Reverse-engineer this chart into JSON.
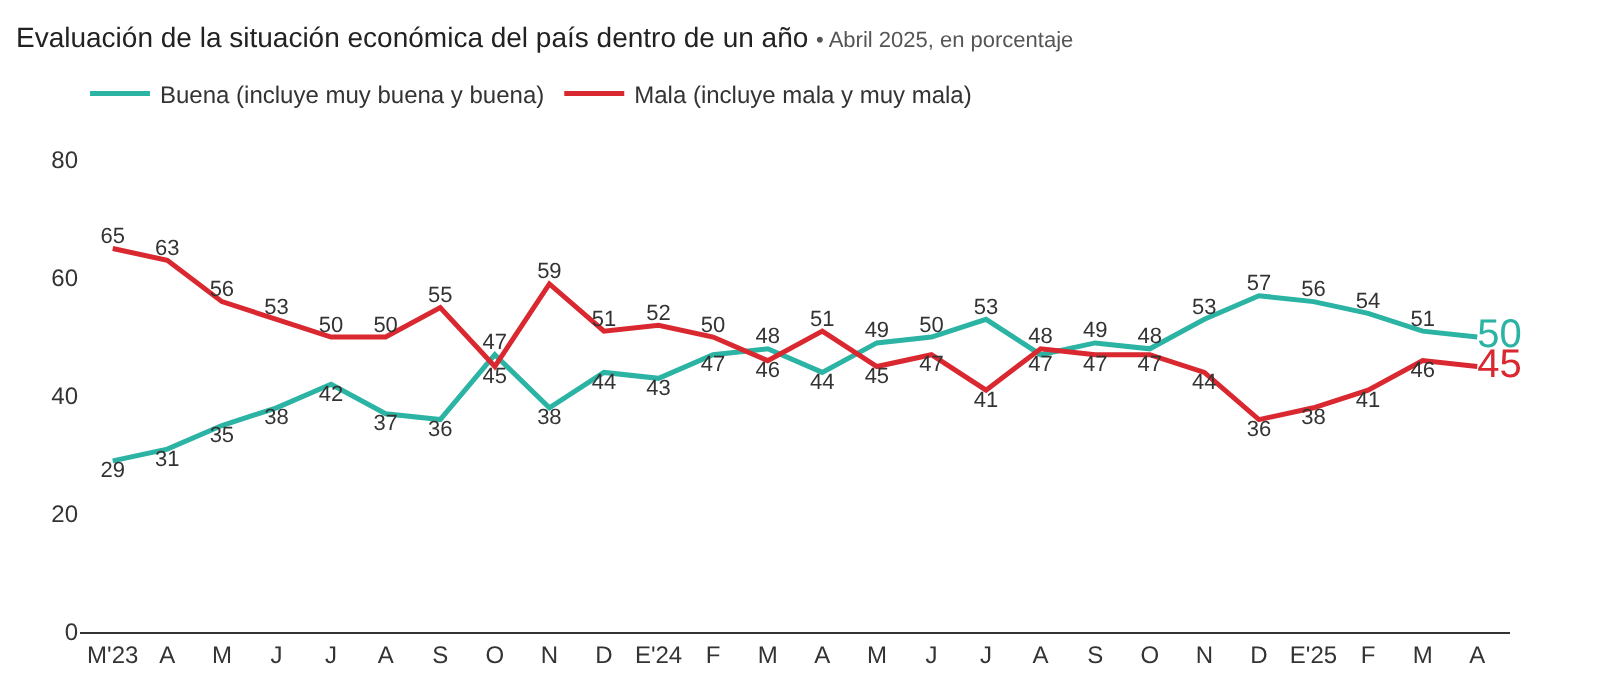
{
  "chart_data": {
    "type": "line",
    "title": "Evaluación de la situación económica del país dentro de un año",
    "subtitle": "• Abril 2025, en porcentaje",
    "categories": [
      "M'23",
      "A",
      "M",
      "J",
      "J",
      "A",
      "S",
      "O",
      "N",
      "D",
      "E'24",
      "F",
      "M",
      "A",
      "M",
      "J",
      "J",
      "A",
      "S",
      "O",
      "N",
      "D",
      "E'25",
      "F",
      "M",
      "A"
    ],
    "series": [
      {
        "name": "Buena (incluye muy buena y buena)",
        "color": "#2bb3a3",
        "values": [
          29,
          31,
          35,
          38,
          42,
          37,
          36,
          47,
          38,
          44,
          43,
          47,
          48,
          44,
          49,
          50,
          53,
          47,
          49,
          48,
          53,
          57,
          56,
          54,
          51,
          50
        ]
      },
      {
        "name": "Mala (incluye mala y muy mala)",
        "color": "#d9282f",
        "values": [
          65,
          63,
          56,
          53,
          50,
          50,
          55,
          45,
          59,
          51,
          52,
          50,
          46,
          51,
          45,
          47,
          41,
          48,
          47,
          47,
          44,
          36,
          38,
          41,
          46,
          45
        ]
      }
    ],
    "ylim": [
      0,
      80
    ],
    "yticks": [
      0,
      20,
      40,
      60,
      80
    ],
    "legend": "top left",
    "marker": "none",
    "line_style": "solid",
    "data_labels": true
  }
}
